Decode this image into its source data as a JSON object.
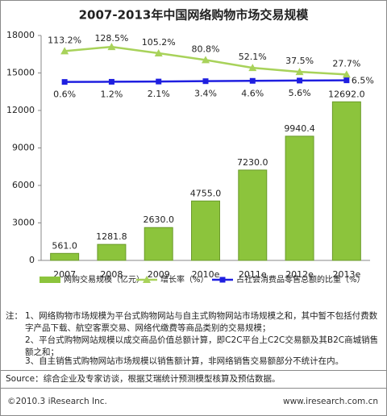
{
  "chart_data": {
    "type": "combo",
    "title": "2007-2013年中国网络购物市场交易规模",
    "categories": [
      "2007",
      "2008",
      "2009",
      "2010e",
      "2011e",
      "2012e",
      "2013e"
    ],
    "ylim": [
      0,
      18000
    ],
    "yticks": [
      0,
      3000,
      6000,
      9000,
      12000,
      15000,
      18000
    ],
    "y2lim": [
      -650,
      170
    ],
    "grid": false,
    "legend": "bottom",
    "series": [
      {
        "name": "网购交易规模（亿元）",
        "type": "bar",
        "color": "#8cc43c",
        "values": [
          561,
          1281.8,
          2630,
          4755,
          7230,
          9940.4,
          12692
        ],
        "value_labels": [
          "561.0",
          "1281.8",
          "2630.0",
          "4755.0",
          "7230.0",
          "9940.4",
          "12692.0"
        ]
      },
      {
        "name": "增长率（%）",
        "type": "line",
        "axis": "y2",
        "color": "#a8d25a",
        "marker": "triangle",
        "values": [
          113.2,
          128.5,
          105.2,
          80.8,
          52.1,
          37.5,
          27.7
        ],
        "value_labels": [
          "113.2%",
          "128.5%",
          "105.2%",
          "80.8%",
          "52.1%",
          "37.5%",
          "27.7%"
        ]
      },
      {
        "name": "占社会消费品零售总额的比重（%）",
        "type": "line",
        "axis": "y2",
        "color": "#1f1fe0",
        "marker": "square",
        "values": [
          0.6,
          1.2,
          2.1,
          3.4,
          4.6,
          5.6,
          6.5
        ],
        "value_labels": [
          "0.6%",
          "1.2%",
          "2.1%",
          "3.4%",
          "4.6%",
          "5.6%",
          "6.5%"
        ]
      }
    ]
  },
  "notes": {
    "label": "注：",
    "items": [
      "1、网络购物市场规模为平台式购物网站与自主式购物网站市场规模之和，其中暂不包括付费数字产品下载、航空客票交易、网络代缴费等商品类别的交易规模；",
      "2、平台式购物网站规模以成交商品价值总额计算，即C2C平台上C2C交易额及其B2C商城销售额之和；",
      "3、自主销售式购物网站市场规模以销售额计算，非网络销售交易额部分不统计在内。"
    ]
  },
  "source": "Source：综合企业及专家访谈，根据艾瑞统计预测模型核算及预估数据。",
  "footer": {
    "copyright": "©2010.3 iResearch Inc.",
    "website": "www.iresearch.com.cn"
  }
}
